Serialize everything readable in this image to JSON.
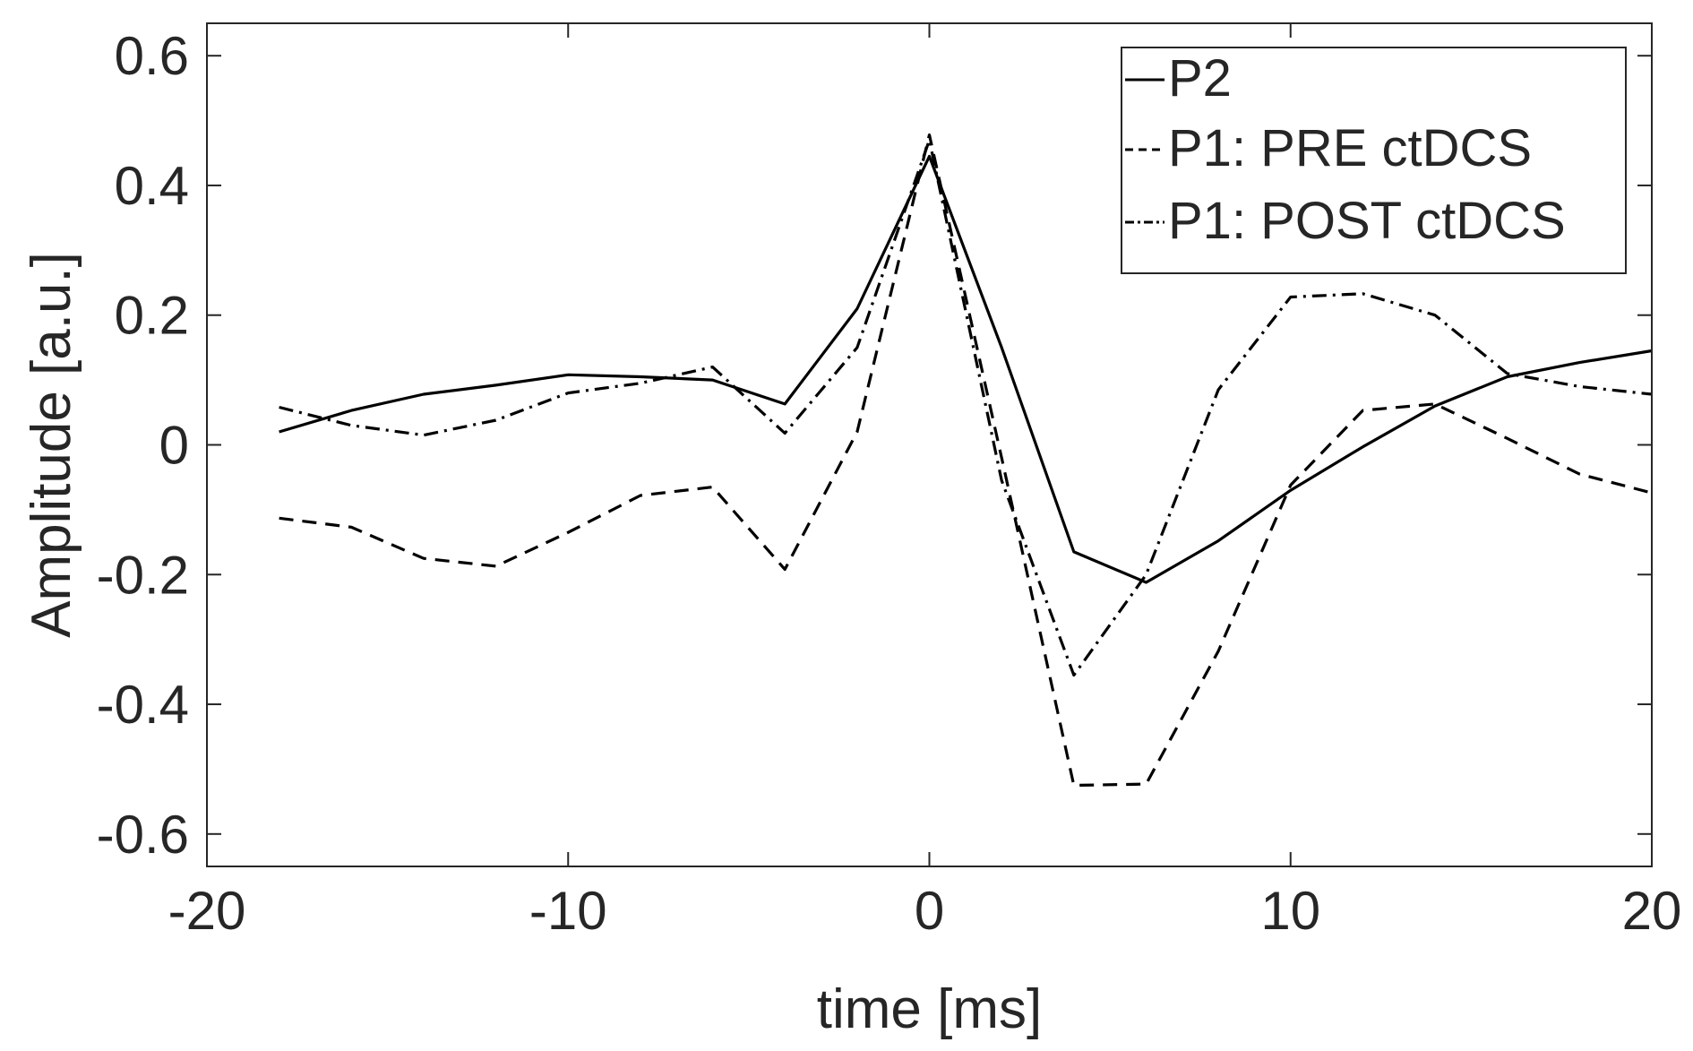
{
  "chart_data": {
    "type": "line",
    "title": "",
    "xlabel": "time [ms]",
    "ylabel": "Amplitude [a.u.]",
    "xlim": [
      -20,
      20
    ],
    "ylim": [
      -0.65,
      0.65
    ],
    "xticks": [
      -20,
      -10,
      0,
      10,
      20
    ],
    "xtick_labels": [
      "-20",
      "-10",
      "0",
      "10",
      "20"
    ],
    "yticks": [
      0.6,
      0.4,
      0.2,
      0,
      -0.2,
      -0.4,
      -0.6
    ],
    "ytick_labels": [
      "0.6",
      "0.4",
      "0.2",
      "0",
      "-0.2",
      "-0.4",
      "-0.6"
    ],
    "grid": false,
    "legend_position": "top-right",
    "series": [
      {
        "name": "P2",
        "style": "solid",
        "x": [
          -18,
          -16,
          -14,
          -12,
          -10,
          -8,
          -6,
          -4,
          -2,
          0,
          2,
          4,
          6,
          8,
          10,
          12,
          14,
          16,
          18,
          20
        ],
        "y": [
          0.02,
          0.053,
          0.078,
          0.092,
          0.108,
          0.105,
          0.1,
          0.063,
          0.21,
          0.445,
          0.15,
          -0.165,
          -0.212,
          -0.148,
          -0.07,
          -0.003,
          0.06,
          0.105,
          0.127,
          0.145
        ]
      },
      {
        "name": "P1: PRE ctDCS",
        "style": "dashed",
        "x": [
          -18,
          -16,
          -14,
          -12,
          -10,
          -8,
          -6,
          -4,
          -2,
          0,
          2,
          4,
          6,
          8,
          10,
          12,
          14,
          16,
          18,
          20
        ],
        "y": [
          -0.113,
          -0.127,
          -0.175,
          -0.187,
          -0.135,
          -0.078,
          -0.065,
          -0.192,
          0.02,
          0.478,
          -0.02,
          -0.525,
          -0.523,
          -0.318,
          -0.062,
          0.053,
          0.063,
          0.01,
          -0.045,
          -0.074
        ]
      },
      {
        "name": "P1: POST ctDCS",
        "style": "dashdot",
        "x": [
          -18,
          -16,
          -14,
          -12,
          -10,
          -8,
          -6,
          -4,
          -2,
          0,
          2,
          4,
          6,
          8,
          10,
          12,
          14,
          16,
          18,
          20
        ],
        "y": [
          0.058,
          0.03,
          0.015,
          0.038,
          0.08,
          0.095,
          0.12,
          0.018,
          0.15,
          0.47,
          -0.055,
          -0.355,
          -0.2,
          0.085,
          0.228,
          0.233,
          0.2,
          0.11,
          0.09,
          0.078
        ]
      }
    ]
  },
  "colors": {
    "line": "#000000",
    "axis": "#262626",
    "background": "#ffffff"
  }
}
